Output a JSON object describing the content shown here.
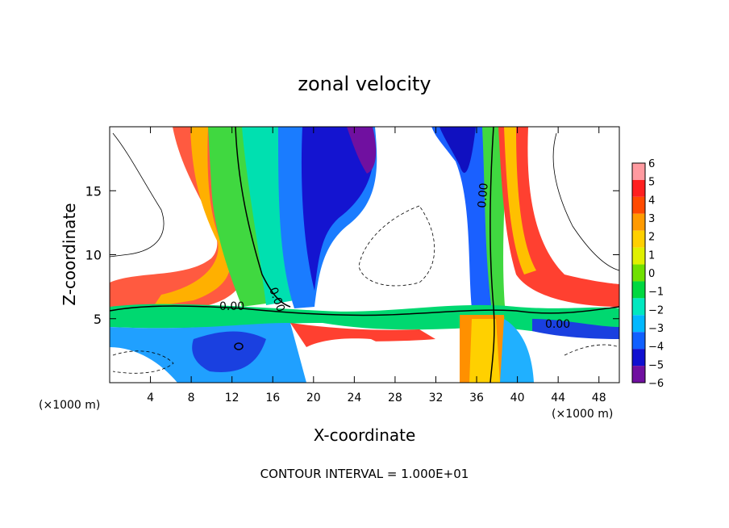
{
  "chart_data": {
    "type": "heatmap",
    "title": "zonal velocity",
    "xlabel": "X-coordinate",
    "ylabel": "Z-coordinate",
    "x_unit_label": "(×1000 m)",
    "x_unit_label_right": "(×1000 m)",
    "footer": "CONTOUR INTERVAL = 1.000E+01",
    "xlim": [
      0,
      50
    ],
    "ylim": [
      0,
      20
    ],
    "x_ticks": [
      "4",
      "8",
      "12",
      "16",
      "20",
      "24",
      "28",
      "32",
      "36",
      "40",
      "44",
      "48"
    ],
    "y_ticks": [
      "5",
      "10",
      "15"
    ],
    "colorbar": {
      "levels": [
        "6",
        "5",
        "4",
        "3",
        "2",
        "1",
        "0",
        "−1",
        "−2",
        "−3",
        "−4",
        "−5",
        "−6"
      ],
      "colors": [
        "#ff9aa0",
        "#ff2020",
        "#ff4a00",
        "#ff9a00",
        "#ffd000",
        "#e0f000",
        "#70e000",
        "#00d840",
        "#00e8c0",
        "#00b8ff",
        "#1060ff",
        "#1010d0",
        "#7010a0"
      ]
    },
    "contour_labels": [
      "0.00",
      "0.00",
      "0.00",
      "0.00"
    ],
    "grid": false,
    "legend": "colorbar-right"
  }
}
